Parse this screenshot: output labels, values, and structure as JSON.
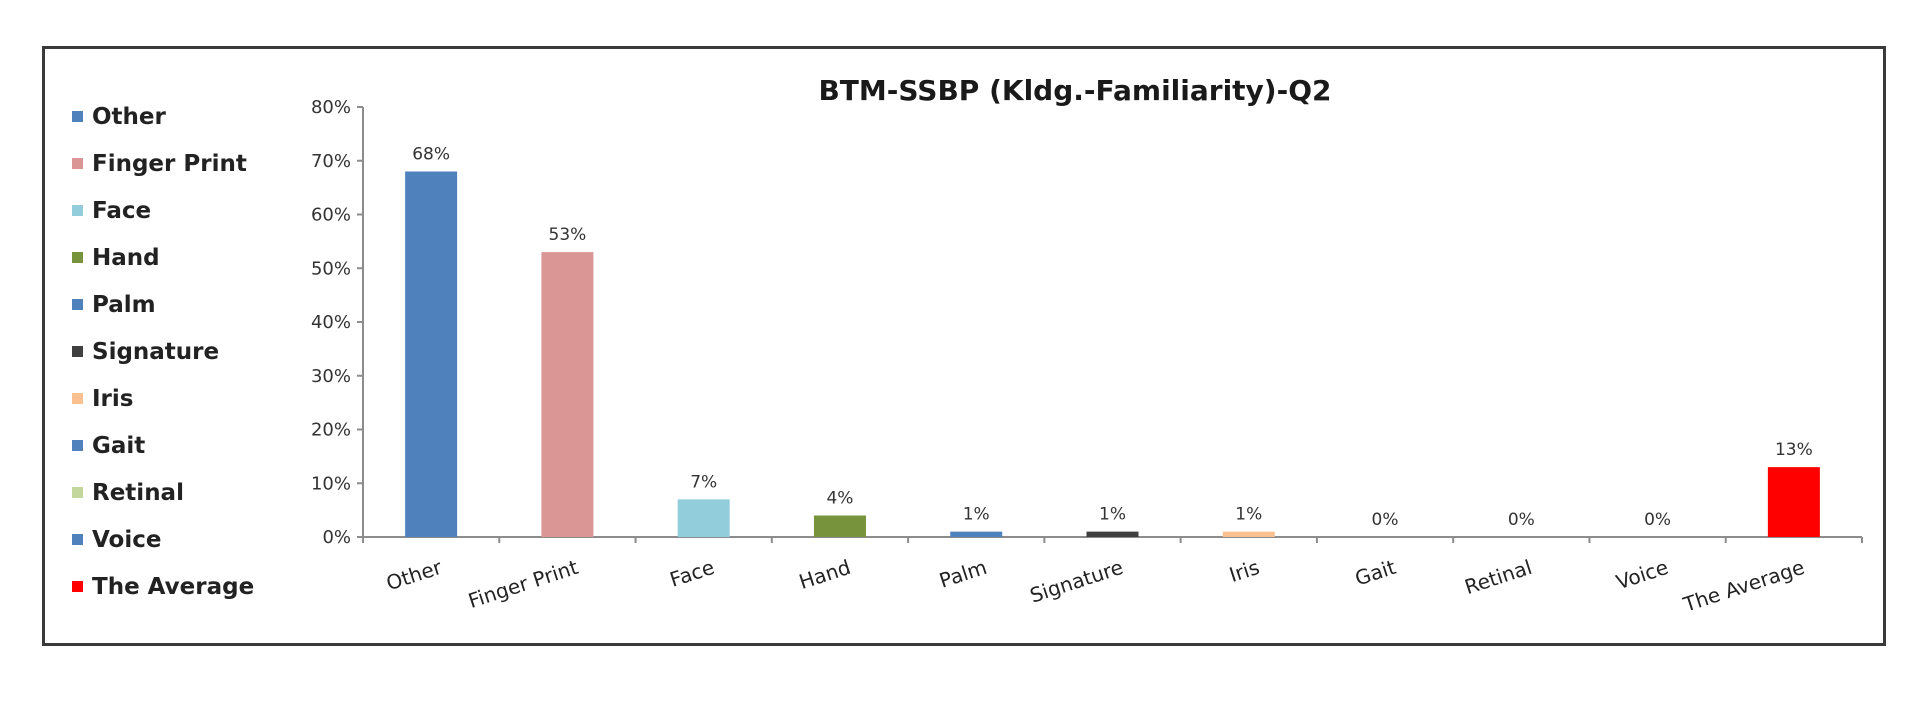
{
  "chart_data": {
    "type": "bar",
    "title": "BTM-SSBP (Kldg.-Familiarity)-Q2",
    "xlabel": "",
    "ylabel": "",
    "ylim": [
      0,
      80
    ],
    "y_tick_step": 10,
    "y_unit": "%",
    "legend_position": "left",
    "grid": false,
    "categories": [
      "Other",
      "Finger Print",
      "Face",
      "Hand",
      "Palm",
      "Signature",
      "Iris",
      "Gait",
      "Retinal",
      "Voice",
      "The Average"
    ],
    "values": [
      68,
      53,
      7,
      4,
      1,
      1,
      1,
      0,
      0,
      0,
      13
    ],
    "data_labels": [
      "68%",
      "53%",
      "7%",
      "4%",
      "1%",
      "1%",
      "1%",
      "0%",
      "0%",
      "0%",
      "13%"
    ],
    "colors": [
      "#4f81bd",
      "#d99694",
      "#92cddc",
      "#77933c",
      "#4f81bd",
      "#404040",
      "#fac090",
      "#4f81bd",
      "#c3d69b",
      "#4f81bd",
      "#ff0000"
    ]
  }
}
